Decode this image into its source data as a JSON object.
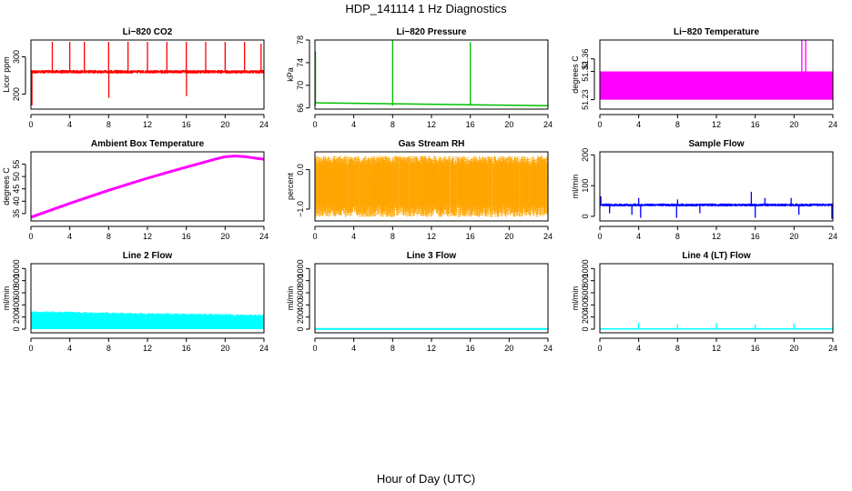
{
  "figure": {
    "title": "HDP_141114  1 Hz Diagnostics",
    "xlabel": "Hour of Day (UTC)"
  },
  "chart_data": [
    {
      "type": "line",
      "title": "Li−820 CO2",
      "ylabel": "Licor ppm",
      "color": "#ff0000",
      "xlim": [
        0,
        24
      ],
      "ylim": [
        160,
        345
      ],
      "xticks": [
        0,
        4,
        8,
        12,
        16,
        20,
        24
      ],
      "yticks": [
        200,
        300
      ],
      "baseline": 260,
      "noise": 5,
      "spikes": [
        {
          "x": 0.1,
          "y": 170
        },
        {
          "x": 2.2,
          "y": 340
        },
        {
          "x": 4,
          "y": 340
        },
        {
          "x": 5.5,
          "y": 340
        },
        {
          "x": 8,
          "y": 340
        },
        {
          "x": 8.02,
          "y": 190
        },
        {
          "x": 10,
          "y": 340
        },
        {
          "x": 12,
          "y": 340
        },
        {
          "x": 14,
          "y": 340
        },
        {
          "x": 16,
          "y": 340
        },
        {
          "x": 16.02,
          "y": 195
        },
        {
          "x": 18,
          "y": 340
        },
        {
          "x": 20,
          "y": 340
        },
        {
          "x": 22,
          "y": 340
        },
        {
          "x": 23.7,
          "y": 335
        },
        {
          "x": 24,
          "y": 240
        }
      ]
    },
    {
      "type": "line",
      "title": "Li−820 Pressure",
      "ylabel": "kPa",
      "color": "#00c000",
      "xlim": [
        0,
        24
      ],
      "ylim": [
        65.8,
        78
      ],
      "xticks": [
        0,
        4,
        8,
        12,
        16,
        20,
        24
      ],
      "yticks": [
        66,
        70,
        74,
        78
      ],
      "series": [
        {
          "x": [
            0,
            0.3,
            24
          ],
          "y": [
            67.0,
            66.9,
            66.4
          ]
        }
      ],
      "spikes": [
        {
          "x": 0.05,
          "y": 76
        },
        {
          "x": 8,
          "y": 78
        },
        {
          "x": 16,
          "y": 77.6
        },
        {
          "x": 24,
          "y": 77.4
        }
      ]
    },
    {
      "type": "band",
      "title": "Li−820 Temperature",
      "ylabel": "degrees C",
      "color": "#ff00ff",
      "xlim": [
        0,
        24
      ],
      "ylim": [
        51.2,
        51.42
      ],
      "xticks": [
        0,
        4,
        8,
        12,
        16,
        20,
        24
      ],
      "yticks": [
        51.23,
        51.32,
        51.36
      ],
      "ytick_labels": [
        "51.23",
        "51.32",
        "51.36"
      ],
      "band": {
        "from": 51.23,
        "to": 51.32,
        "x0": 0,
        "x1": 24
      },
      "spikes": [
        {
          "x": 20.8,
          "y": 51.42
        },
        {
          "x": 21.2,
          "y": 51.42
        },
        {
          "x": 22.0,
          "y": 51.32
        },
        {
          "x": 22.6,
          "y": 51.32
        },
        {
          "x": 23.1,
          "y": 51.32
        },
        {
          "x": 23.6,
          "y": 51.32
        }
      ]
    },
    {
      "type": "line",
      "title": "Ambient Box Temperature",
      "ylabel": "degrees C",
      "color": "#ff00ff",
      "xlim": [
        0,
        24
      ],
      "ylim": [
        32,
        60
      ],
      "xticks": [
        0,
        4,
        8,
        12,
        16,
        20,
        24
      ],
      "yticks": [
        35,
        40,
        45,
        50,
        55
      ],
      "series": [
        {
          "x": [
            0,
            2,
            4,
            6,
            8,
            10,
            12,
            14,
            16,
            18,
            19,
            20,
            21,
            22,
            23,
            24
          ],
          "y": [
            33.5,
            36.3,
            39.1,
            41.8,
            44.4,
            46.9,
            49.3,
            51.6,
            53.8,
            56,
            57.1,
            58,
            58.3,
            58.1,
            57.5,
            57
          ]
        }
      ],
      "line_width": 3
    },
    {
      "type": "band",
      "title": "Gas Stream RH",
      "ylabel": "percent",
      "color": "#ffa500",
      "xlim": [
        0,
        24
      ],
      "ylim": [
        -1.3,
        0.45
      ],
      "xticks": [
        0,
        4,
        8,
        12,
        16,
        20,
        24
      ],
      "yticks": [
        -1.0,
        0.0
      ],
      "ytick_labels": [
        "−1.0",
        "0.0"
      ],
      "band": {
        "from": -0.85,
        "to": 0.1,
        "x0": 0,
        "x1": 24,
        "jitter_up": 0.25,
        "jitter_down": 0.35
      }
    },
    {
      "type": "line",
      "title": "Sample Flow",
      "ylabel": "ml/min",
      "color": "#0000ff",
      "xlim": [
        0,
        24
      ],
      "ylim": [
        -15,
        210
      ],
      "xticks": [
        0,
        4,
        8,
        12,
        16,
        20,
        24
      ],
      "yticks": [
        0,
        100,
        200
      ],
      "baseline": 37,
      "noise": 5,
      "spikes": [
        {
          "x": 0.1,
          "y": 65
        },
        {
          "x": 1,
          "y": 10
        },
        {
          "x": 3.3,
          "y": 5
        },
        {
          "x": 4,
          "y": 60
        },
        {
          "x": 4.2,
          "y": -5
        },
        {
          "x": 7.9,
          "y": -5
        },
        {
          "x": 8,
          "y": 55
        },
        {
          "x": 10.3,
          "y": 10
        },
        {
          "x": 15.6,
          "y": 80
        },
        {
          "x": 16,
          "y": -5
        },
        {
          "x": 17,
          "y": 60
        },
        {
          "x": 19.7,
          "y": 60
        },
        {
          "x": 20.5,
          "y": 5
        },
        {
          "x": 23.9,
          "y": -8
        }
      ]
    },
    {
      "type": "band",
      "title": "Line 2 Flow",
      "ylabel": "ml/min",
      "color": "#00ffff",
      "xlim": [
        0,
        24
      ],
      "ylim": [
        -60,
        1080
      ],
      "xticks": [
        0,
        4,
        8,
        12,
        16,
        20,
        24
      ],
      "yticks": [
        0,
        200,
        400,
        600,
        800,
        1000
      ],
      "band": {
        "from": 0,
        "to": 280,
        "x0": 0,
        "x1": 24,
        "top_trend": [
          300,
          240
        ],
        "jitter_up": 30
      }
    },
    {
      "type": "line",
      "title": "Line 3 Flow",
      "ylabel": "ml/min",
      "color": "#00ffff",
      "xlim": [
        0,
        24
      ],
      "ylim": [
        -60,
        1080
      ],
      "xticks": [
        0,
        4,
        8,
        12,
        16,
        20,
        24
      ],
      "yticks": [
        0,
        200,
        400,
        600,
        800,
        1000
      ],
      "series": [
        {
          "x": [
            0,
            24
          ],
          "y": [
            5,
            5
          ]
        }
      ],
      "line_width": 2
    },
    {
      "type": "line",
      "title": "Line 4 (LT) Flow",
      "ylabel": "ml/min",
      "color": "#00ffff",
      "xlim": [
        0,
        24
      ],
      "ylim": [
        -60,
        1080
      ],
      "xticks": [
        0,
        4,
        8,
        12,
        16,
        20,
        24
      ],
      "yticks": [
        0,
        200,
        400,
        600,
        800,
        1000
      ],
      "series": [
        {
          "x": [
            0,
            24
          ],
          "y": [
            5,
            5
          ]
        }
      ],
      "spikes": [
        {
          "x": 4,
          "y": 110
        },
        {
          "x": 8,
          "y": 80
        },
        {
          "x": 12,
          "y": 100
        },
        {
          "x": 16,
          "y": 75
        },
        {
          "x": 20,
          "y": 95
        },
        {
          "x": 24,
          "y": 80
        }
      ]
    }
  ]
}
